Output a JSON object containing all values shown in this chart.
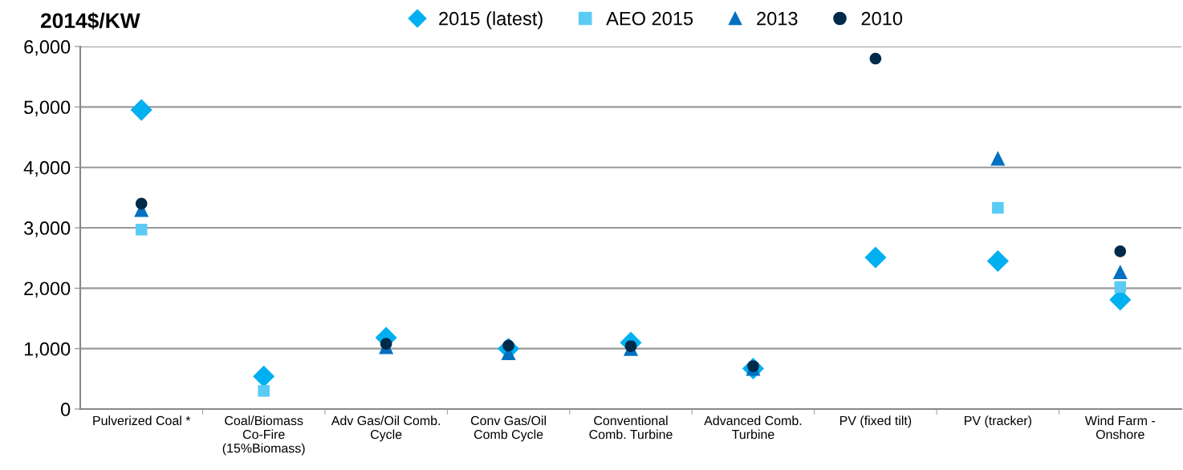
{
  "chart_data": {
    "type": "scatter",
    "ylabel": "2014$/KW",
    "categories": [
      "Pulverized Coal *",
      "Coal/Biomass Co-Fire (15%Biomass)",
      "Adv Gas/Oil Comb. Cycle",
      "Conv Gas/Oil Comb Cycle",
      "Conventional Comb. Turbine",
      "Advanced Comb. Turbine",
      "PV (fixed tilt)",
      "PV (tracker)",
      "Wind Farm - Onshore"
    ],
    "series": [
      {
        "name": "2015 (latest)",
        "color": "#00b0f0",
        "marker": "diamond",
        "values": [
          4950,
          540,
          1180,
          1000,
          1100,
          670,
          2510,
          2450,
          1810
        ]
      },
      {
        "name": "AEO 2015",
        "color": "#5bcbf5",
        "marker": "square",
        "values": [
          2970,
          300,
          null,
          null,
          null,
          null,
          null,
          3330,
          2020
        ]
      },
      {
        "name": "2013",
        "color": "#0070c0",
        "marker": "triangle",
        "values": [
          3300,
          null,
          1030,
          930,
          1000,
          670,
          null,
          4150,
          2270
        ]
      },
      {
        "name": "2010",
        "color": "#002a4a",
        "marker": "circle",
        "values": [
          3400,
          null,
          1080,
          1050,
          1040,
          710,
          5800,
          null,
          2610
        ]
      }
    ],
    "ylim": [
      0,
      6000
    ],
    "yticks": [
      {
        "value": 0,
        "label": "0"
      },
      {
        "value": 1000,
        "label": "1,000"
      },
      {
        "value": 2000,
        "label": "2,000"
      },
      {
        "value": 3000,
        "label": "3,000"
      },
      {
        "value": 4000,
        "label": "4,000"
      },
      {
        "value": 5000,
        "label": "5,000"
      },
      {
        "value": 6000,
        "label": "6,000"
      }
    ],
    "grid": "y",
    "legend": "top"
  }
}
